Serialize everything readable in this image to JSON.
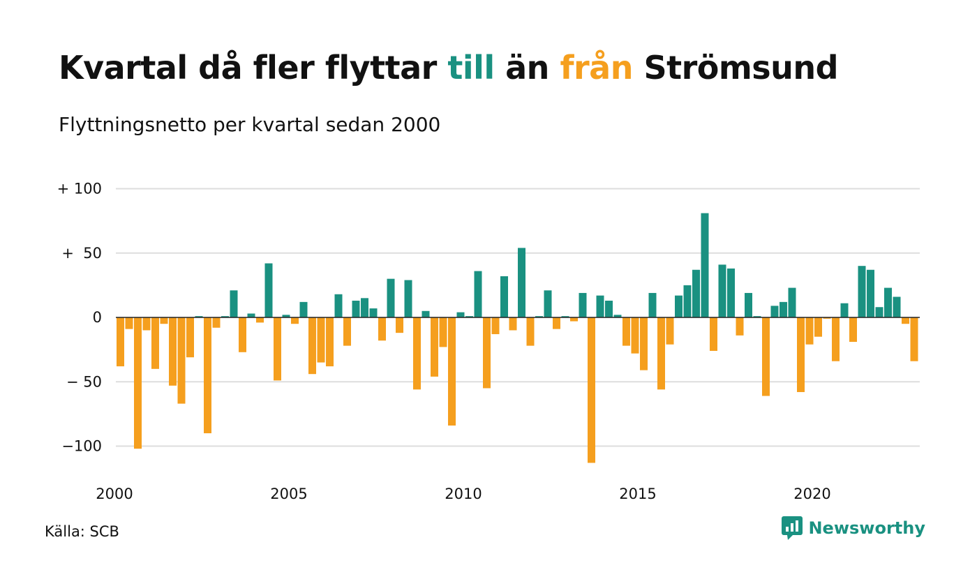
{
  "title": {
    "part1": "Kvartal då fler flyttar ",
    "till": "till",
    "part2": " än ",
    "fran": "från",
    "part3": " Strömsund"
  },
  "subtitle": "Flyttningsnetto per kvartal sedan 2000",
  "source": "Källa: SCB",
  "brand": "Newsworthy",
  "colors": {
    "positive": "#1a9181",
    "negative": "#f59f1e",
    "grid": "#dddddd",
    "axis": "#222222"
  },
  "chart_data": {
    "type": "bar",
    "x_start": "2000 Q1",
    "x_ticks": [
      "2000",
      "2005",
      "2010",
      "2015",
      "2020"
    ],
    "y_ticks": [
      "+ 100",
      "+  50",
      "0",
      "− 50",
      "−100"
    ],
    "ylim": [
      -115,
      105
    ],
    "grid": true,
    "values": [
      -38,
      -9,
      -102,
      -10,
      -40,
      -5,
      -53,
      -67,
      -31,
      1,
      -90,
      -8,
      1,
      21,
      -27,
      3,
      -4,
      42,
      -49,
      2,
      -5,
      12,
      -44,
      -35,
      -38,
      18,
      -22,
      13,
      15,
      7,
      -18,
      30,
      -12,
      29,
      -56,
      5,
      -46,
      -23,
      -84,
      4,
      1,
      36,
      -55,
      -13,
      32,
      -10,
      54,
      -22,
      1,
      21,
      -9,
      1,
      -3,
      19,
      -113,
      17,
      13,
      2,
      -22,
      -28,
      -41,
      19,
      -56,
      -21,
      17,
      25,
      37,
      81,
      -26,
      41,
      38,
      -14,
      19,
      1,
      -61,
      9,
      12,
      23,
      -58,
      -21,
      -15,
      -1,
      -34,
      11,
      -19,
      40,
      37,
      8,
      23,
      16,
      -5,
      -34
    ]
  }
}
